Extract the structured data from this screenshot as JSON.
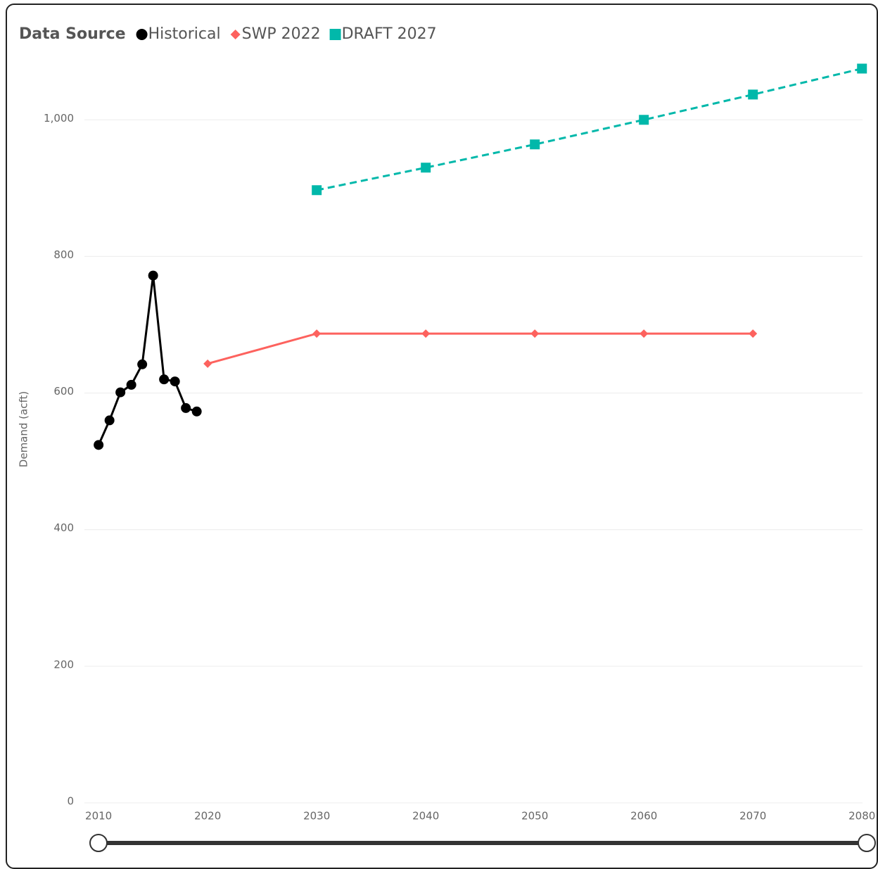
{
  "chart_data": {
    "type": "line",
    "legend_title": "Data Source",
    "y_label": "Demand (acft)",
    "x": [
      2010,
      2011,
      2012,
      2013,
      2014,
      2015,
      2016,
      2017,
      2018,
      2019,
      2020,
      2030,
      2040,
      2050,
      2060,
      2070,
      2080
    ],
    "series": [
      {
        "name": "Historical",
        "color": "#000000",
        "marker": "circle",
        "dash": false,
        "values": [
          524,
          560,
          601,
          612,
          642,
          772,
          620,
          617,
          578,
          573,
          null,
          null,
          null,
          null,
          null,
          null,
          null
        ]
      },
      {
        "name": "SWP 2022",
        "color": "#fd625e",
        "marker": "diamond",
        "dash": false,
        "values": [
          null,
          null,
          null,
          null,
          null,
          null,
          null,
          null,
          null,
          null,
          643,
          687,
          687,
          687,
          687,
          687,
          null
        ]
      },
      {
        "name": "DRAFT 2027",
        "color": "#01b8aa",
        "marker": "square",
        "dash": true,
        "values": [
          null,
          null,
          null,
          null,
          null,
          null,
          null,
          null,
          null,
          null,
          null,
          897,
          930,
          964,
          1000,
          1037,
          1075
        ]
      }
    ],
    "xlim": [
      2008.7,
      2080.05
    ],
    "ylim": [
      0,
      1093
    ],
    "xticks": [
      2010,
      2020,
      2030,
      2040,
      2050,
      2060,
      2070,
      2080
    ],
    "yticks": [
      0,
      200,
      400,
      600,
      800,
      {
        "value": 1000,
        "label": "1,000"
      }
    ],
    "grid": true
  }
}
